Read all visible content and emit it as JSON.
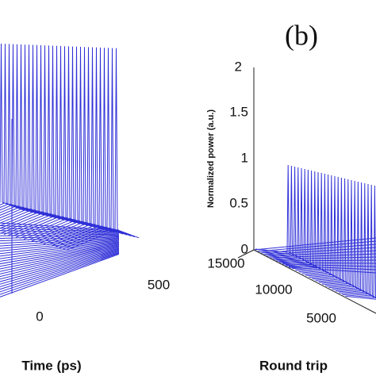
{
  "left_panel": {
    "x_label": "Time (ps)",
    "time_ticks": [
      "0",
      "500"
    ]
  },
  "right_panel": {
    "panel_label": "(b)",
    "z_label": "Normalized power (a.u.)",
    "z_ticks": [
      "0",
      "0.5",
      "1",
      "1.5",
      "2"
    ],
    "round_trip_ticks": [
      "15000",
      "10000",
      "5000"
    ],
    "x_label": "Round trip"
  }
}
